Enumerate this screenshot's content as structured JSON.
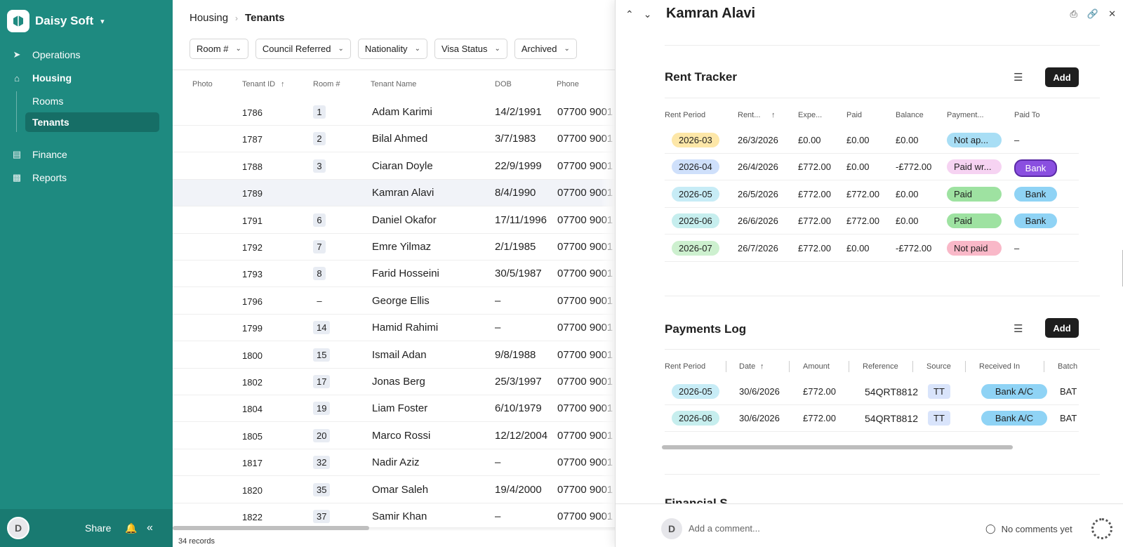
{
  "sidebar": {
    "brand": "Daisy Soft",
    "nav": [
      {
        "label": "Operations",
        "icon": "rocket-icon"
      },
      {
        "label": "Housing",
        "icon": "home-icon"
      },
      {
        "label": "Finance",
        "icon": "money-icon"
      },
      {
        "label": "Reports",
        "icon": "bar-chart-icon"
      }
    ],
    "sub": [
      {
        "label": "Rooms"
      },
      {
        "label": "Tenants"
      }
    ],
    "avatar": "D",
    "share": "Share"
  },
  "main": {
    "breadcrumb": [
      "Housing",
      "Tenants"
    ],
    "filters": [
      "Room #",
      "Council Referred",
      "Nationality",
      "Visa Status",
      "Archived"
    ],
    "columns": [
      "Photo",
      "Tenant ID",
      "Room #",
      "Tenant Name",
      "DOB",
      "Phone"
    ],
    "rows": [
      {
        "id": "1786",
        "room": "1",
        "name": "Adam Karimi",
        "dob": "14/2/1991",
        "phone": "07700 9001"
      },
      {
        "id": "1787",
        "room": "2",
        "name": "Bilal Ahmed",
        "dob": "3/7/1983",
        "phone": "07700 9001"
      },
      {
        "id": "1788",
        "room": "3",
        "name": "Ciaran Doyle",
        "dob": "22/9/1999",
        "phone": "07700 9001"
      },
      {
        "id": "1789",
        "room": "",
        "name": "Kamran Alavi",
        "dob": "8/4/1990",
        "phone": "07700 9001"
      },
      {
        "id": "1791",
        "room": "6",
        "name": "Daniel Okafor",
        "dob": "17/11/1996",
        "phone": "07700 9001"
      },
      {
        "id": "1792",
        "room": "7",
        "name": "Emre Yilmaz",
        "dob": "2/1/1985",
        "phone": "07700 9001"
      },
      {
        "id": "1793",
        "room": "8",
        "name": "Farid Hosseini",
        "dob": "30/5/1987",
        "phone": "07700 9001"
      },
      {
        "id": "1796",
        "room": "–",
        "name": "George Ellis",
        "dob": "–",
        "phone": "07700 9001"
      },
      {
        "id": "1799",
        "room": "14",
        "name": "Hamid Rahimi",
        "dob": "–",
        "phone": "07700 9001"
      },
      {
        "id": "1800",
        "room": "15",
        "name": "Ismail Adan",
        "dob": "9/8/1988",
        "phone": "07700 9001"
      },
      {
        "id": "1802",
        "room": "17",
        "name": "Jonas Berg",
        "dob": "25/3/1997",
        "phone": "07700 9001"
      },
      {
        "id": "1804",
        "room": "19",
        "name": "Liam Foster",
        "dob": "6/10/1979",
        "phone": "07700 9001"
      },
      {
        "id": "1805",
        "room": "20",
        "name": "Marco Rossi",
        "dob": "12/12/2004",
        "phone": "07700 9001"
      },
      {
        "id": "1817",
        "room": "32",
        "name": "Nadir Aziz",
        "dob": "–",
        "phone": "07700 9001"
      },
      {
        "id": "1820",
        "room": "35",
        "name": "Omar Saleh",
        "dob": "19/4/2000",
        "phone": "07700 9001"
      },
      {
        "id": "1822",
        "room": "37",
        "name": "Samir Khan",
        "dob": "–",
        "phone": "07700 9001"
      }
    ],
    "records": "34 records"
  },
  "panel": {
    "title": "Kamran Alavi",
    "rent_tracker": {
      "title": "Rent Tracker",
      "add": "Add",
      "columns": [
        "Rent Period",
        "Rent...",
        "Expe...",
        "Paid",
        "Balance",
        "Payment...",
        "Paid To"
      ],
      "rows": [
        {
          "period": "2026-03",
          "date": "26/3/2026",
          "expected": "£0.00",
          "paid": "£0.00",
          "balance": "£0.00",
          "status": "Not ap...",
          "paid_to": "–",
          "period_color": "#fde7a8",
          "status_color": "#a8def5"
        },
        {
          "period": "2026-04",
          "date": "26/4/2026",
          "expected": "£772.00",
          "paid": "£0.00",
          "balance": "-£772.00",
          "status": "Paid wr...",
          "paid_to": "Bank",
          "period_color": "#cfe0fb",
          "status_color": "#f6d3f2",
          "paid_to_color": "#8a4fe0"
        },
        {
          "period": "2026-05",
          "date": "26/5/2026",
          "expected": "£772.00",
          "paid": "£772.00",
          "balance": "£0.00",
          "status": "Paid",
          "paid_to": "Bank",
          "period_color": "#c7ecf6",
          "status_color": "#9ee2a1",
          "paid_to_color": "#8fd3f5"
        },
        {
          "period": "2026-06",
          "date": "26/6/2026",
          "expected": "£772.00",
          "paid": "£772.00",
          "balance": "£0.00",
          "status": "Paid",
          "paid_to": "Bank",
          "period_color": "#c6eeee",
          "status_color": "#9ee2a1",
          "paid_to_color": "#8fd3f5"
        },
        {
          "period": "2026-07",
          "date": "26/7/2026",
          "expected": "£772.00",
          "paid": "£0.00",
          "balance": "-£772.00",
          "status": "Not paid",
          "paid_to": "–",
          "period_color": "#cdf0cf",
          "status_color": "#f9b8c8"
        }
      ]
    },
    "payments_log": {
      "title": "Payments Log",
      "add": "Add",
      "columns": [
        "Rent Period",
        "Date",
        "Amount",
        "Reference",
        "Source",
        "Received In",
        "Batch"
      ],
      "rows": [
        {
          "period": "2026-05",
          "date": "30/6/2026",
          "amount": "£772.00",
          "reference": "54QRT8812",
          "source": "TT",
          "received_in": "Bank A/C",
          "batch": "BAT"
        },
        {
          "period": "2026-06",
          "date": "30/6/2026",
          "amount": "£772.00",
          "reference": "54QRT8812",
          "source": "TT",
          "received_in": "Bank A/C",
          "batch": "BAT"
        }
      ]
    },
    "next_section": "Financial S",
    "comments": {
      "avatar": "D",
      "placeholder": "Add a comment...",
      "status": "No comments yet"
    }
  }
}
